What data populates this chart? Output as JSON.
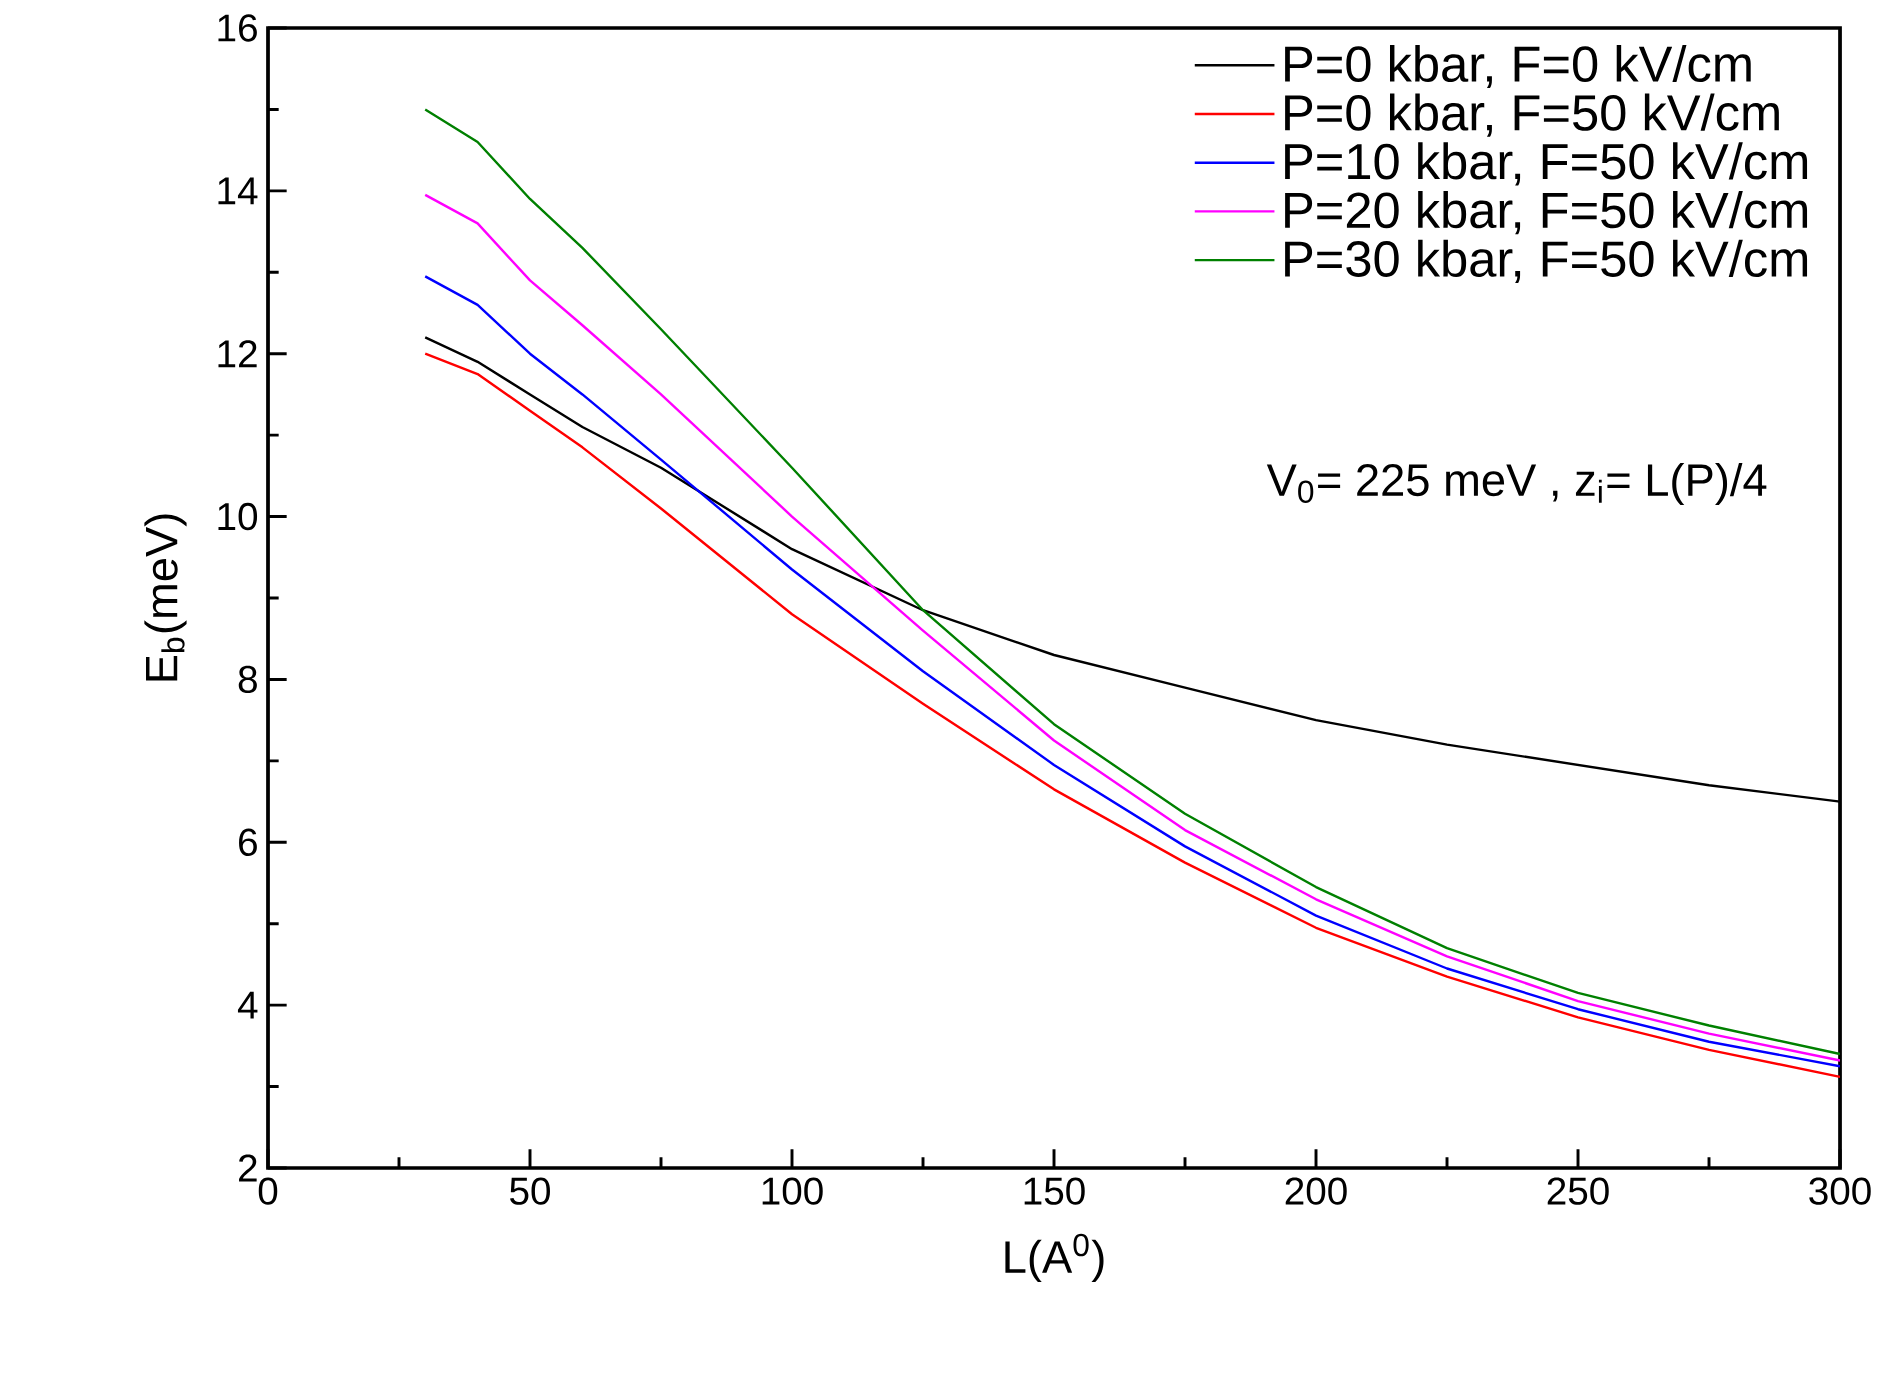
{
  "chart_data": {
    "type": "line",
    "xlabel": "L(A$^{0}$)",
    "ylabel": "E$_{b}$(meV)",
    "x": [
      30,
      40,
      50,
      60,
      75,
      100,
      125,
      150,
      175,
      200,
      225,
      250,
      275,
      300
    ],
    "xlim": [
      0,
      300
    ],
    "xticks": [
      0,
      50,
      100,
      150,
      200,
      250,
      300
    ],
    "ylim": [
      2,
      16
    ],
    "yticks": [
      2,
      4,
      6,
      8,
      10,
      12,
      14,
      16
    ],
    "legend": "top right",
    "marker": "none",
    "line_style": "solid",
    "grid": false,
    "annotations": [
      "V$_{0}$= 225 meV ,  z$_{i}$= L(P)/4"
    ],
    "series": [
      {
        "name": "P=0 kbar, F=0 kV/cm",
        "color": "#000000",
        "values": [
          12.2,
          11.9,
          11.5,
          11.1,
          10.6,
          9.6,
          8.85,
          8.3,
          7.9,
          7.5,
          7.2,
          6.95,
          6.7,
          6.5
        ]
      },
      {
        "name": "P=0 kbar, F=50 kV/cm",
        "color": "#ff0000",
        "values": [
          12.0,
          11.75,
          11.3,
          10.85,
          10.1,
          8.8,
          7.7,
          6.65,
          5.75,
          4.95,
          4.35,
          3.85,
          3.45,
          3.12
        ]
      },
      {
        "name": "P=10 kbar, F=50 kV/cm",
        "color": "#0000ff",
        "values": [
          12.95,
          12.6,
          12.0,
          11.5,
          10.7,
          9.35,
          8.1,
          6.95,
          5.95,
          5.1,
          4.45,
          3.95,
          3.55,
          3.25
        ]
      },
      {
        "name": "P=20 kbar, F=50 kV/cm",
        "color": "#ff00ff",
        "values": [
          13.95,
          13.6,
          12.9,
          12.35,
          11.5,
          10.0,
          8.6,
          7.25,
          6.15,
          5.3,
          4.6,
          4.05,
          3.65,
          3.32
        ]
      },
      {
        "name": "P=30 kbar, F=50 kV/cm",
        "color": "#008000",
        "values": [
          15.0,
          14.6,
          13.9,
          13.3,
          12.3,
          10.6,
          8.85,
          7.45,
          6.35,
          5.45,
          4.7,
          4.15,
          3.75,
          3.4
        ]
      }
    ]
  }
}
